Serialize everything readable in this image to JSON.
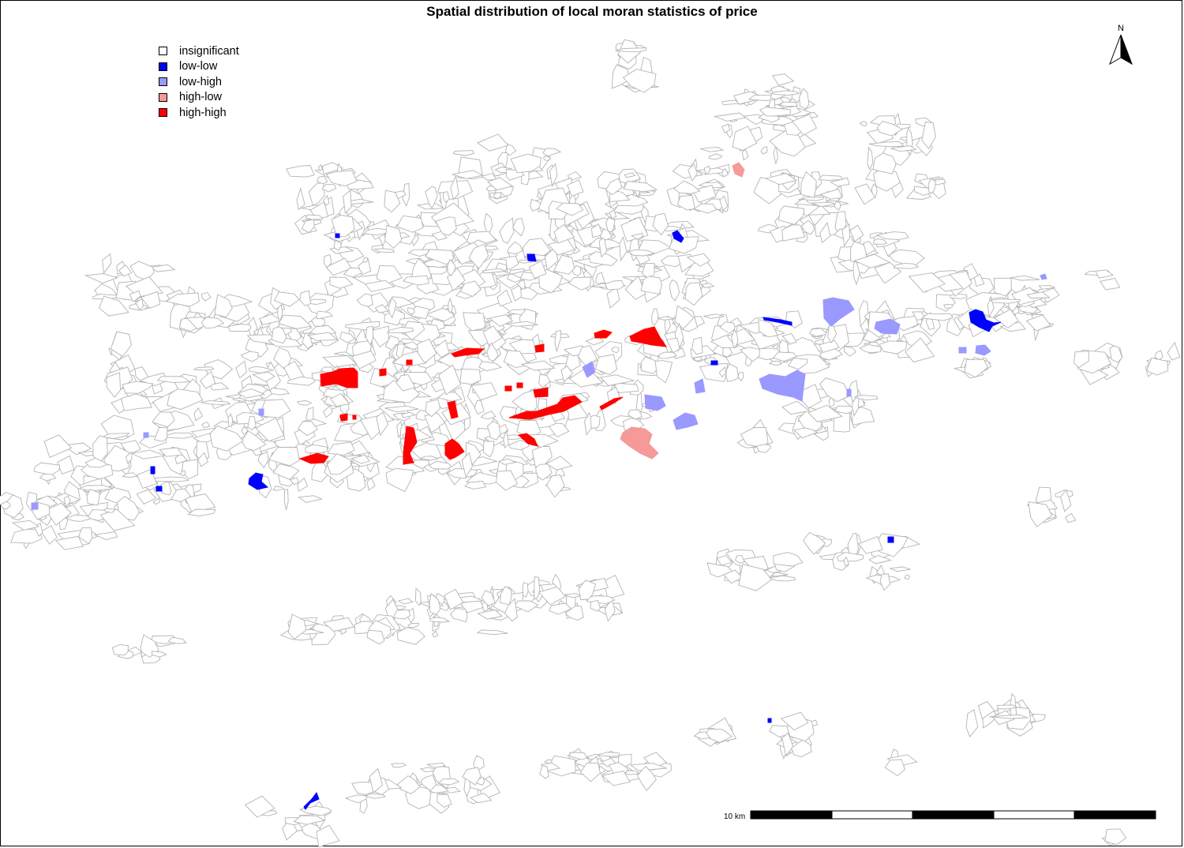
{
  "title": "Spatial distribution of local moran statistics of price",
  "legend": {
    "items": [
      {
        "label": "insignificant",
        "color": "#ffffff"
      },
      {
        "label": "low-low",
        "color": "#0000ff"
      },
      {
        "label": "low-high",
        "color": "#9999ff"
      },
      {
        "label": "high-low",
        "color": "#f59999"
      },
      {
        "label": "high-high",
        "color": "#ff0000"
      }
    ]
  },
  "north_arrow": {
    "label": "N"
  },
  "scale_bar": {
    "label": "10 km"
  },
  "colors": {
    "outline": "#b4b4b4",
    "insignificant": "#ffffff",
    "low_low": "#0000ff",
    "low_high": "#9999ff",
    "high_low": "#f59999",
    "high_high": "#ff0000"
  }
}
